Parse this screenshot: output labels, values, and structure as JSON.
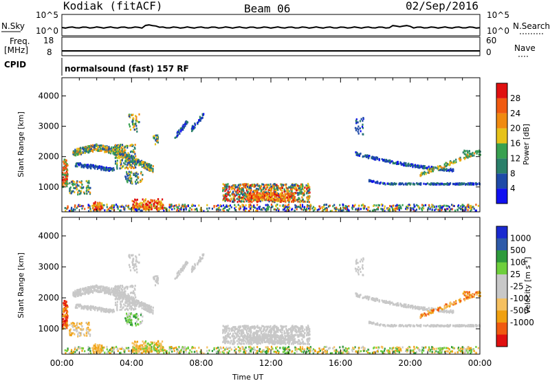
{
  "header": {
    "station": "Kodiak (fitACF)",
    "beam": "Beam 06",
    "date": "02/Sep/2016"
  },
  "strips": {
    "nsky_label": "N.Sky",
    "nsearch_label": "N.Search",
    "nsky_ticks": [
      "10^5",
      "10^0"
    ],
    "nsearch_ticks": [
      "10^5",
      "10^0"
    ],
    "freq_label_1": "Freq.",
    "freq_label_2": "[MHz]",
    "freq_ticks": [
      "18",
      "8"
    ],
    "nave_label": "Nave",
    "nave_ticks": [
      "60",
      "0"
    ],
    "cpid_label": "CPID",
    "cpid_text": "normalsound (fast) 157 RF"
  },
  "colors": {
    "power_scale": [
      "#1010f0",
      "#1e4aa8",
      "#2a7f6a",
      "#38a050",
      "#e6c21a",
      "#f08a10",
      "#f05a10",
      "#e01010"
    ],
    "velocity_scale": [
      "#e01010",
      "#f05a10",
      "#f0a010",
      "#f5c060",
      "#c8c8c8",
      "#c8c8c8",
      "#6ecf3c",
      "#2e9a3c",
      "#2e5aa8",
      "#1a2ad0"
    ]
  },
  "chart_data": [
    {
      "type": "heatmap",
      "name": "power",
      "ylabel": "Slant Range [km]",
      "yticks": [
        1000,
        2000,
        3000,
        4000
      ],
      "ylim": [
        180,
        4600
      ],
      "xlim": [
        0,
        24
      ],
      "colorbar_label": "Power [dB]",
      "colorbar_ticks": [
        "4",
        "8",
        "12",
        "16",
        "20",
        "24",
        "28"
      ],
      "colorbar_range": [
        0,
        30
      ]
    },
    {
      "type": "heatmap",
      "name": "velocity",
      "ylabel": "Slant Range [km]",
      "yticks": [
        1000,
        2000,
        3000,
        4000
      ],
      "ylim": [
        180,
        4600
      ],
      "xlim": [
        0,
        24
      ],
      "xlabel": "Time UT",
      "xticks": [
        "00:00",
        "04:00",
        "08:00",
        "12:00",
        "16:00",
        "20:00",
        "00:00"
      ],
      "colorbar_label": "Velocity [m s^-1]",
      "colorbar_ticks": [
        "1000",
        "500",
        "100",
        "25",
        "-25",
        "-100",
        "-500",
        "-1000"
      ]
    }
  ]
}
